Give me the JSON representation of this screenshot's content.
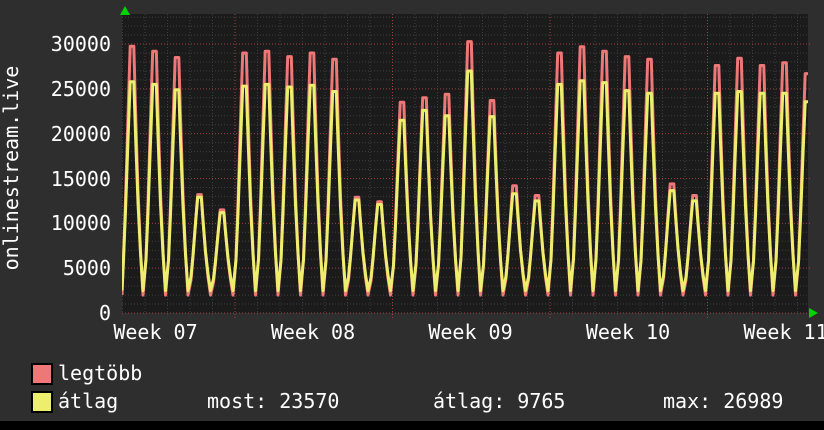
{
  "colors": {
    "outer_bg": "#2e2e2e",
    "plot_bg": "#1b1b1b",
    "minor_grid": "#3f3f3f",
    "major_grid": "#9c4040",
    "text": "#ffffff",
    "arrow_green": "#00d400",
    "series_legtobb": "#ee7777",
    "series_atlag": "#eeee6e",
    "bottom_strip": "#000000"
  },
  "chart_data": {
    "type": "line",
    "title": "",
    "vertical_label": "onlinestream.live",
    "ylabel": "",
    "xlabel": "",
    "ylim": [
      0,
      33350
    ],
    "y_ticks": [
      0,
      5000,
      10000,
      15000,
      20000,
      25000,
      30000
    ],
    "x_tick_labels": [
      "Week 07",
      "Week 08",
      "Week 09",
      "Week 10",
      "Week 11"
    ],
    "grid": true,
    "minor_y_step": 1000,
    "days_shown": 31,
    "legend_position": "bottom-left",
    "series": [
      {
        "name": "legtöbb",
        "color": "#ee7777",
        "trough_value": 2000,
        "daily_peaks": [
          29750,
          29200,
          28500,
          13200,
          11500,
          29000,
          29200,
          28600,
          29000,
          28300,
          12900,
          12400,
          23500,
          24000,
          24400,
          30270,
          23700,
          14200,
          13100,
          29000,
          29700,
          29200,
          28600,
          28300,
          14400,
          13100,
          27600,
          28400,
          27600,
          27900,
          26700
        ]
      },
      {
        "name": "átlag",
        "color": "#eeee6e",
        "trough_value": 2500,
        "daily_peaks": [
          25800,
          25500,
          24900,
          12900,
          11200,
          25300,
          25500,
          25200,
          25400,
          24700,
          12600,
          12100,
          21500,
          22600,
          22000,
          26989,
          21900,
          13300,
          12500,
          25500,
          25900,
          25700,
          24800,
          24500,
          13650,
          12500,
          24500,
          24700,
          24500,
          24500,
          23570
        ]
      }
    ]
  },
  "legend": [
    {
      "label": "legtöbb",
      "color": "#ee7777"
    },
    {
      "label": "átlag",
      "color": "#eeee6e"
    }
  ],
  "stats": {
    "most": {
      "label": "most:",
      "value": "23570"
    },
    "atlag": {
      "label": "átlag:",
      "value": "9765"
    },
    "max": {
      "label": "max:",
      "value": "26989"
    }
  }
}
